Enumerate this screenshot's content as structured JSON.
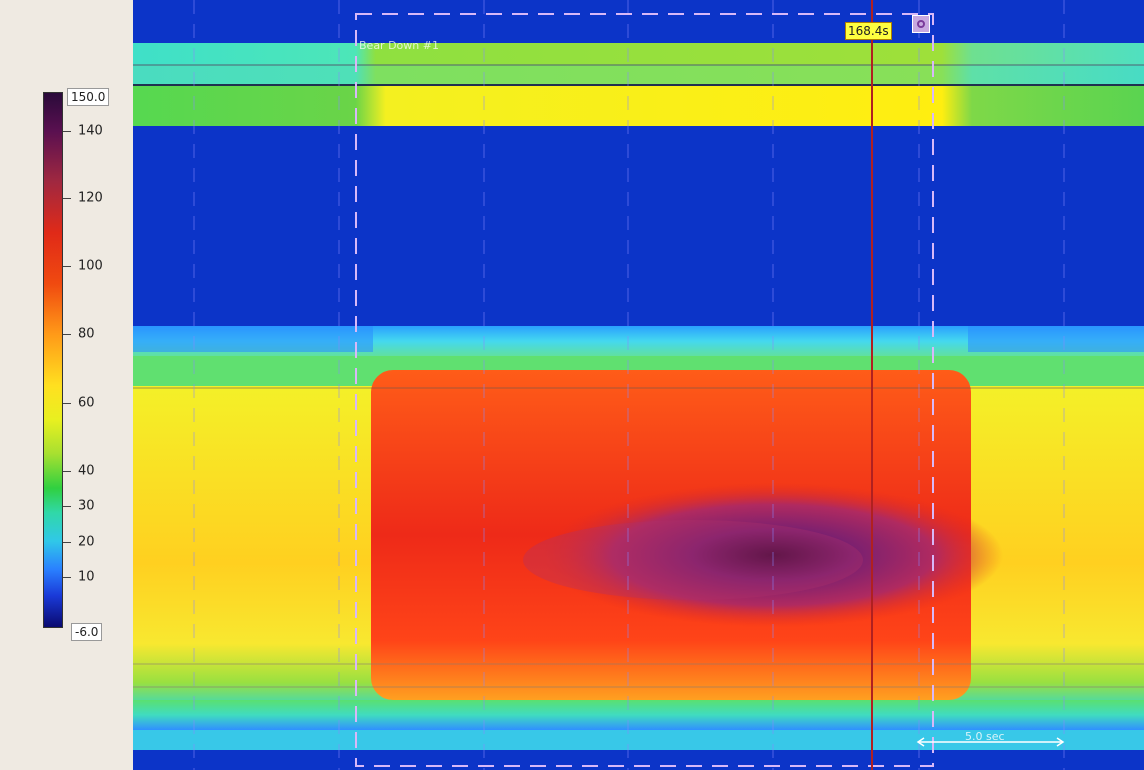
{
  "chart_data": {
    "type": "heatmap",
    "colorbar": {
      "max_label": "150.0",
      "min_label": "-6.0",
      "min": -6,
      "max": 150,
      "ticks": [
        140,
        120,
        100,
        80,
        60,
        40,
        30,
        20,
        10
      ],
      "tick_labels": [
        "140",
        "120",
        "100",
        "80",
        "60",
        "40",
        "30",
        "20",
        "10"
      ]
    },
    "marker": {
      "label": "168.4s"
    },
    "event": {
      "label": "Bear Down #1"
    },
    "scale": {
      "label": "5.0 sec"
    }
  }
}
